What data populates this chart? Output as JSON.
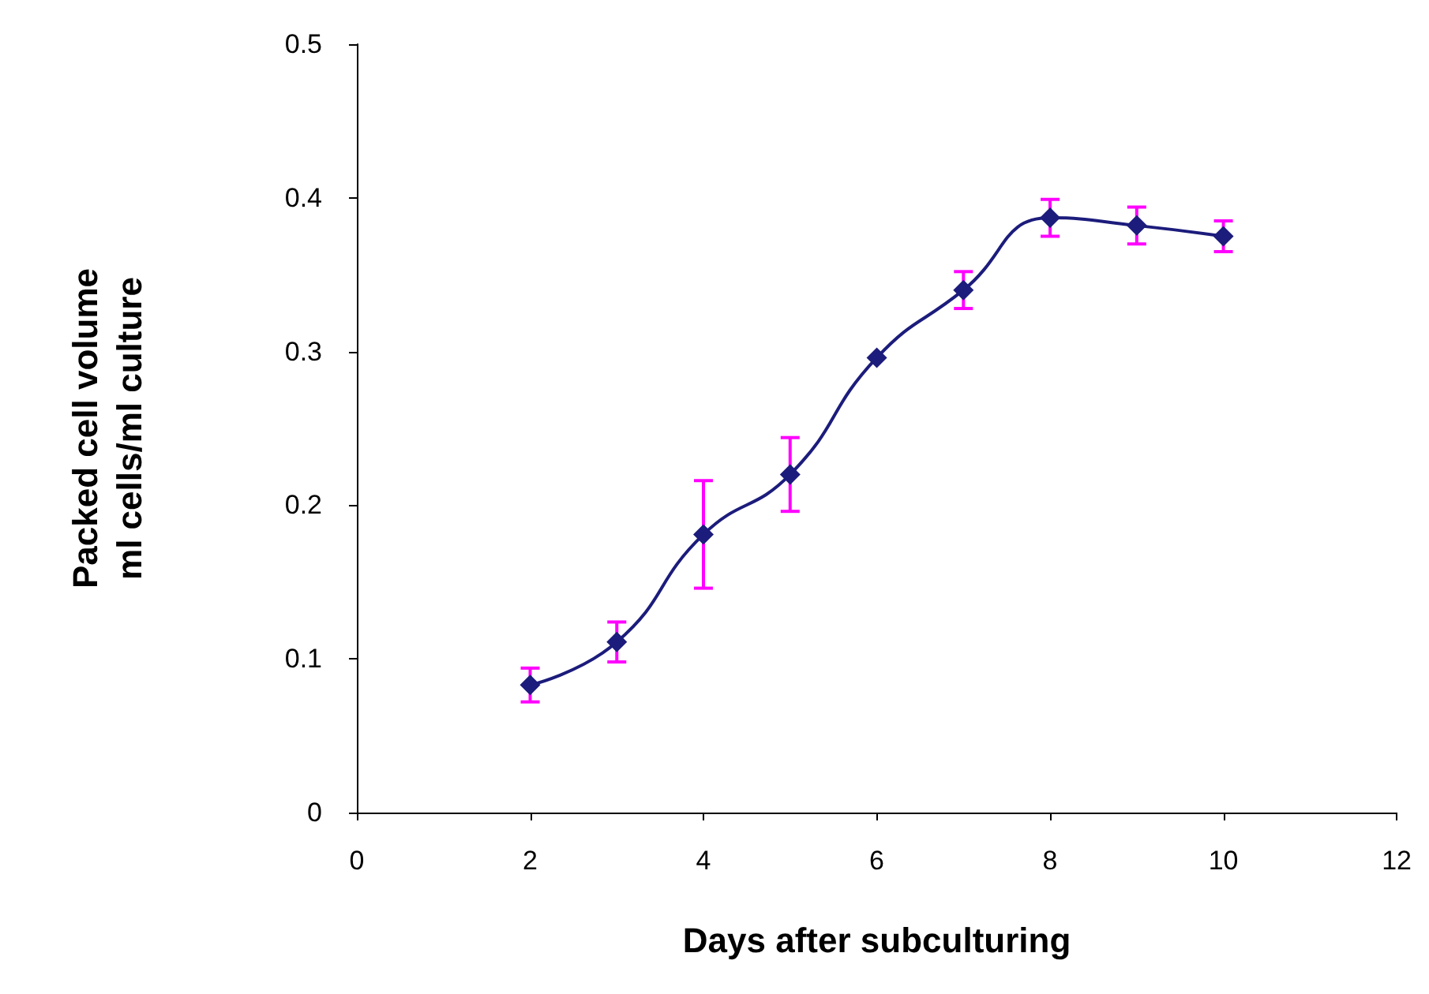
{
  "chart_data": {
    "type": "line",
    "xlabel": "Days after subculturing",
    "ylabel": "Packed cell volume\nml cells/ml culture",
    "x": [
      2,
      3,
      4,
      5,
      6,
      7,
      8,
      9,
      10
    ],
    "series": [
      {
        "color": "#1c1c7c",
        "values": [
          0.083,
          0.111,
          0.181,
          0.22,
          0.296,
          0.34,
          0.387,
          0.382,
          0.375
        ],
        "errors": [
          0.011,
          0.013,
          0.035,
          0.024,
          null,
          0.012,
          0.012,
          0.012,
          0.01
        ]
      }
    ],
    "xlim": [
      0,
      12
    ],
    "xticks": [
      0,
      2,
      4,
      6,
      8,
      10,
      12
    ],
    "ylim": [
      0,
      0.5
    ],
    "yticks": [
      0,
      0.1,
      0.2,
      0.3,
      0.4,
      0.5
    ],
    "grid": false,
    "marker": "diamond",
    "line_style": "solid"
  }
}
